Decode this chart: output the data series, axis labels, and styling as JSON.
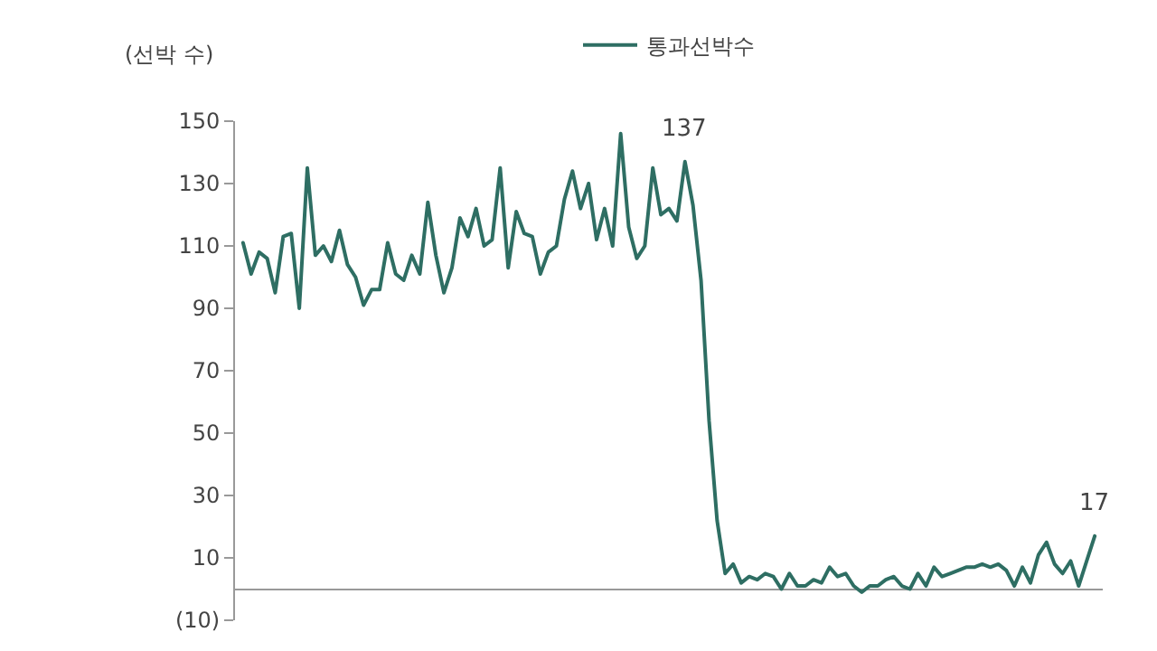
{
  "chart_data": {
    "type": "line",
    "ylabel": "(선박 수)",
    "legend": "top",
    "ylim": [
      -10,
      150
    ],
    "yticks": [
      {
        "value": -10,
        "label": "(10)"
      },
      10,
      30,
      50,
      70,
      90,
      110,
      130,
      150
    ],
    "grid": false,
    "categories": [
      null,
      null,
      null,
      null,
      null,
      null,
      null,
      null,
      null,
      null,
      null,
      null,
      null,
      null,
      null,
      null,
      null,
      null,
      null,
      null,
      null,
      null,
      null,
      null,
      null,
      null,
      null,
      null,
      null,
      null,
      null,
      null,
      null,
      null,
      null,
      null,
      null,
      null,
      null,
      null,
      null,
      null,
      null,
      null,
      null,
      null,
      null,
      null,
      null,
      null,
      null,
      null,
      null,
      null,
      null,
      null,
      null,
      null,
      null,
      null,
      null,
      null,
      null,
      null,
      null,
      null,
      null,
      null,
      null,
      null,
      null,
      null,
      null,
      null,
      null,
      null,
      null,
      null,
      null,
      null,
      null,
      null,
      null,
      null,
      null,
      null,
      null,
      null,
      null,
      null,
      null,
      null,
      null,
      null,
      null,
      null,
      null,
      null,
      null,
      null,
      null,
      null,
      null,
      null,
      null,
      null,
      null
    ],
    "series": [
      {
        "name": "통과선박수",
        "color": "#2e6e63",
        "values": [
          111,
          101,
          108,
          106,
          95,
          113,
          114,
          90,
          135,
          107,
          110,
          105,
          115,
          104,
          100,
          91,
          96,
          96,
          111,
          101,
          99,
          107,
          101,
          124,
          107,
          95,
          103,
          119,
          113,
          122,
          110,
          112,
          135,
          103,
          121,
          114,
          113,
          101,
          108,
          110,
          125,
          134,
          122,
          130,
          112,
          122,
          110,
          146,
          116,
          106,
          110,
          135,
          120,
          122,
          118,
          137,
          123,
          99,
          54,
          22,
          5,
          8,
          2,
          4,
          3,
          5,
          4,
          0,
          5,
          1,
          1,
          3,
          2,
          7,
          4,
          5,
          1,
          -1,
          1,
          1,
          3,
          4,
          1,
          0,
          5,
          1,
          7,
          4,
          5,
          6,
          7,
          7,
          8,
          7,
          8,
          6,
          1,
          7,
          2,
          11,
          15,
          8,
          5,
          9,
          1,
          9,
          17
        ],
        "value_labels": [
          null,
          null,
          null,
          null,
          null,
          null,
          null,
          null,
          null,
          null,
          null,
          null,
          null,
          null,
          null,
          null,
          null,
          null,
          null,
          null,
          null,
          null,
          null,
          null,
          null,
          null,
          null,
          null,
          null,
          null,
          null,
          null,
          null,
          null,
          null,
          null,
          null,
          null,
          null,
          null,
          null,
          null,
          null,
          null,
          null,
          null,
          null,
          null,
          null,
          null,
          null,
          null,
          null,
          null,
          null,
          "137",
          null,
          null,
          null,
          null,
          null,
          null,
          null,
          null,
          null,
          null,
          null,
          null,
          null,
          null,
          null,
          null,
          null,
          null,
          null,
          null,
          null,
          null,
          null,
          null,
          null,
          null,
          null,
          null,
          null,
          null,
          null,
          null,
          null,
          null,
          null,
          null,
          null,
          null,
          null,
          null,
          null,
          null,
          null,
          null,
          null,
          null,
          null,
          null,
          null,
          null,
          "17"
        ]
      }
    ]
  }
}
